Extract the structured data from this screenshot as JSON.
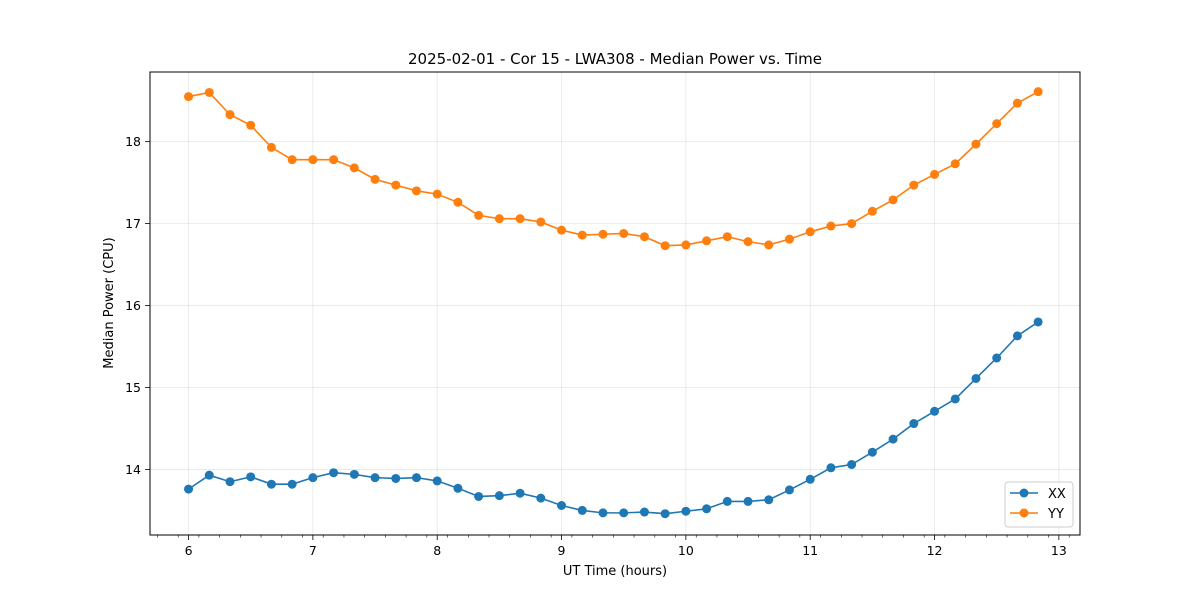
{
  "chart_data": {
    "type": "line",
    "title": "2025-02-01 - Cor 15 - LWA308 - Median Power vs. Time",
    "xlabel": "UT Time (hours)",
    "ylabel": "Median Power (CPU)",
    "xlim": [
      5.69,
      13.17
    ],
    "ylim": [
      13.2,
      18.85
    ],
    "xticks": [
      "6",
      "7",
      "8",
      "9",
      "10",
      "11",
      "12",
      "13"
    ],
    "yticks": [
      "14",
      "15",
      "16",
      "17",
      "18"
    ],
    "grid": true,
    "legend_position": "lower-right",
    "x": [
      6.0,
      6.1667,
      6.3333,
      6.5,
      6.6667,
      6.8333,
      7.0,
      7.1667,
      7.3333,
      7.5,
      7.6667,
      7.8333,
      8.0,
      8.1667,
      8.3333,
      8.5,
      8.6667,
      8.8333,
      9.0,
      9.1667,
      9.3333,
      9.5,
      9.6667,
      9.8333,
      10.0,
      10.1667,
      10.3333,
      10.5,
      10.6667,
      10.8333,
      11.0,
      11.1667,
      11.3333,
      11.5,
      11.6667,
      11.8333,
      12.0,
      12.1667,
      12.3333,
      12.5,
      12.6667,
      12.8333
    ],
    "series": [
      {
        "name": "XX",
        "color": "#1f77b4",
        "values": [
          13.76,
          13.93,
          13.85,
          13.91,
          13.82,
          13.82,
          13.9,
          13.96,
          13.94,
          13.9,
          13.89,
          13.9,
          13.86,
          13.77,
          13.67,
          13.68,
          13.71,
          13.65,
          13.56,
          13.5,
          13.47,
          13.47,
          13.48,
          13.46,
          13.49,
          13.52,
          13.61,
          13.61,
          13.63,
          13.75,
          13.88,
          14.02,
          14.06,
          14.21,
          14.37,
          14.56,
          14.71,
          14.86,
          15.11,
          15.36,
          15.63,
          15.8
        ]
      },
      {
        "name": "YY",
        "color": "#ff7f0e",
        "values": [
          18.55,
          18.6,
          18.33,
          18.2,
          17.93,
          17.78,
          17.78,
          17.78,
          17.68,
          17.54,
          17.47,
          17.4,
          17.36,
          17.26,
          17.1,
          17.06,
          17.06,
          17.02,
          16.92,
          16.86,
          16.87,
          16.88,
          16.84,
          16.73,
          16.74,
          16.79,
          16.84,
          16.78,
          16.74,
          16.81,
          16.9,
          16.97,
          17.0,
          17.15,
          17.29,
          17.47,
          17.6,
          17.73,
          17.97,
          18.22,
          18.47,
          18.61
        ]
      }
    ]
  }
}
